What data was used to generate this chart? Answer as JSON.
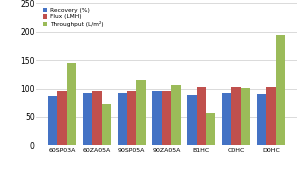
{
  "categories": [
    "60SP03A",
    "60ZA05A",
    "90SP05A",
    "90ZA05A",
    "B1HC",
    "C0HC",
    "D0HC"
  ],
  "recovery": [
    87,
    93,
    92,
    95,
    89,
    92,
    90
  ],
  "flux": [
    95,
    96,
    96,
    95,
    102,
    102,
    102
  ],
  "throughput": [
    145,
    73,
    115,
    106,
    57,
    101,
    195
  ],
  "bar_colors": {
    "recovery": "#4472C4",
    "flux": "#C0504D",
    "throughput": "#9BBB59"
  },
  "legend_labels": [
    "Recovery (%)",
    "Flux (LMH)",
    "Throughput (L/m²)"
  ],
  "ylim": [
    0,
    250
  ],
  "yticks": [
    0,
    50,
    100,
    150,
    200,
    250
  ],
  "background_color": "#FFFFFF",
  "grid_color": "#CCCCCC"
}
